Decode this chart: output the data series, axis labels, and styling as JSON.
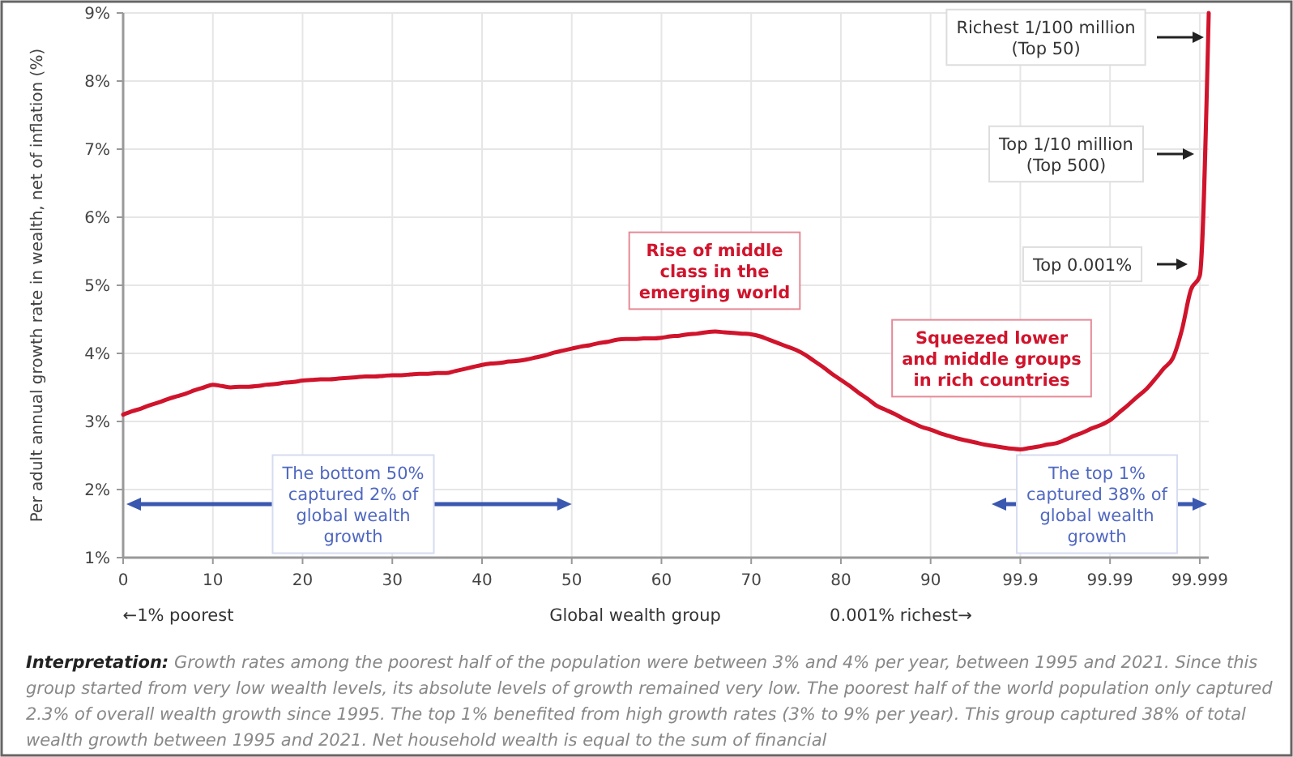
{
  "chart_data": {
    "type": "line",
    "xlabel": "Global wealth group",
    "ylabel": "Per adult annual growth rate in wealth, net of inflation (%)",
    "ylim": [
      1,
      9
    ],
    "yticks": [
      {
        "value": 1,
        "label": "1%"
      },
      {
        "value": 2,
        "label": "2%"
      },
      {
        "value": 3,
        "label": "3%"
      },
      {
        "value": 4,
        "label": "4%"
      },
      {
        "value": 5,
        "label": "5%"
      },
      {
        "value": 6,
        "label": "6%"
      },
      {
        "value": 7,
        "label": "7%"
      },
      {
        "value": 8,
        "label": "8%"
      },
      {
        "value": 9,
        "label": "9%"
      }
    ],
    "grid": true,
    "categories": [
      "0",
      null,
      null,
      null,
      null,
      null,
      null,
      null,
      null,
      null,
      "10",
      null,
      null,
      null,
      null,
      null,
      null,
      null,
      null,
      null,
      "20",
      null,
      null,
      null,
      null,
      null,
      null,
      null,
      null,
      null,
      "30",
      null,
      null,
      null,
      null,
      null,
      null,
      null,
      null,
      null,
      "40",
      null,
      null,
      null,
      null,
      null,
      null,
      null,
      null,
      null,
      "50",
      null,
      null,
      null,
      null,
      null,
      null,
      null,
      null,
      null,
      "60",
      null,
      null,
      null,
      null,
      null,
      null,
      null,
      null,
      null,
      "70",
      null,
      null,
      null,
      null,
      null,
      null,
      null,
      null,
      null,
      "80",
      null,
      null,
      null,
      null,
      null,
      null,
      null,
      null,
      null,
      "90",
      null,
      null,
      null,
      null,
      null,
      null,
      null,
      null,
      null,
      "99.9",
      null,
      null,
      null,
      null,
      null,
      null,
      null,
      null,
      null,
      "99.99",
      null,
      null,
      null,
      null,
      null,
      null,
      null,
      null,
      null,
      "99.999",
      null
    ],
    "series": [
      {
        "color": "#d0142c",
        "values": [
          3.1,
          3.15,
          3.19,
          3.24,
          3.28,
          3.33,
          3.37,
          3.41,
          3.46,
          3.5,
          3.54,
          3.52,
          3.5,
          3.51,
          3.51,
          3.52,
          3.54,
          3.55,
          3.57,
          3.58,
          3.6,
          3.61,
          3.62,
          3.62,
          3.63,
          3.64,
          3.65,
          3.66,
          3.66,
          3.67,
          3.68,
          3.68,
          3.69,
          3.7,
          3.7,
          3.71,
          3.71,
          3.74,
          3.77,
          3.8,
          3.83,
          3.85,
          3.86,
          3.88,
          3.89,
          3.91,
          3.94,
          3.97,
          4.01,
          4.04,
          4.07,
          4.1,
          4.12,
          4.15,
          4.17,
          4.2,
          4.21,
          4.21,
          4.22,
          4.22,
          4.23,
          4.25,
          4.26,
          4.28,
          4.29,
          4.31,
          4.32,
          4.31,
          4.3,
          4.29,
          4.28,
          4.25,
          4.2,
          4.15,
          4.1,
          4.05,
          3.98,
          3.89,
          3.8,
          3.7,
          3.61,
          3.52,
          3.42,
          3.33,
          3.23,
          3.17,
          3.11,
          3.04,
          2.98,
          2.92,
          2.88,
          2.83,
          2.79,
          2.75,
          2.72,
          2.69,
          2.66,
          2.64,
          2.62,
          2.6,
          2.59,
          2.61,
          2.63,
          2.66,
          2.68,
          2.73,
          2.79,
          2.84,
          2.9,
          2.95,
          3.02,
          3.13,
          3.24,
          3.36,
          3.47,
          3.62,
          3.78,
          3.93,
          4.34,
          4.93,
          5.14,
          9.0
        ]
      }
    ],
    "annotations": [
      "Rise of middle class in the emerging world",
      "Squeezed lower and middle groups in rich countries",
      "Richest 1/100 million (Top 50)",
      "Top 1/10 million (Top 500)",
      "Top 0.001%",
      "The bottom 50% captured 2% of global wealth growth",
      "The top 1% captured 38% of global wealth growth",
      "←1% poorest",
      "0.001% richest→",
      "Interpretation: Growth rates among the poorest half of the population were between 3% and 4% per year, between 1995 and 2021. Since this group started from very low wealth levels, its absolute levels of growth remained very low. The poorest half of the world population only captured 2.3% of overall wealth growth since 1995. The top 1% benefited from high growth rates (3% to 9% per year). This group captured 38% of total wealth growth between 1995 and 2021. Net household wealth is equal to the sum of financial"
    ]
  }
}
